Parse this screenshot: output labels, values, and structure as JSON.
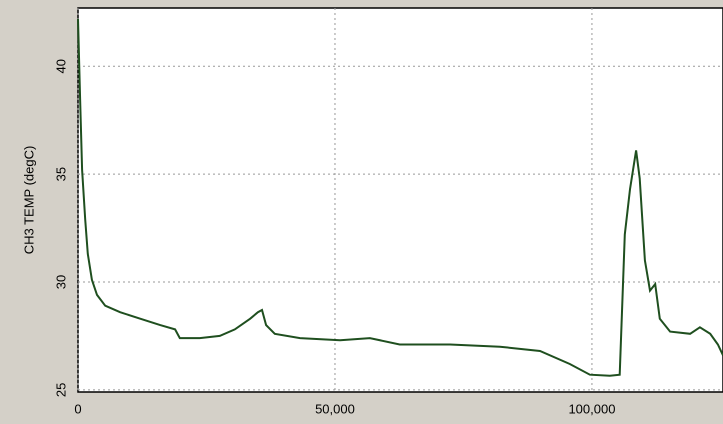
{
  "chart_data": {
    "type": "line",
    "y_label": "CH3 TEMP (degC)",
    "xlim": [
      0,
      125500
    ],
    "ylim": [
      24.9,
      42.7
    ],
    "xticks": [
      0,
      {
        "value": 50000,
        "label": "50,000"
      },
      {
        "value": 100000,
        "label": "100,000"
      }
    ],
    "yticks": [
      25,
      30,
      35,
      40
    ],
    "grid": true,
    "series": [
      {
        "color": "#1f4f1f",
        "x": [
          0,
          400,
          800,
          1400,
          1900,
          2700,
          3700,
          5300,
          8200,
          12100,
          16000,
          18900,
          19800,
          23700,
          27600,
          30500,
          33500,
          35000,
          35800,
          36600,
          38300,
          43200,
          51000,
          56800,
          62600,
          72400,
          82100,
          89900,
          95700,
          99600,
          103500,
          105400,
          106400,
          107400,
          108600,
          109300,
          110300,
          111300,
          112300,
          113200,
          115200,
          119100,
          121000,
          123000,
          124500,
          125500
        ],
        "values": [
          42.2,
          38.5,
          35.2,
          32.9,
          31.3,
          30.1,
          29.4,
          28.9,
          28.6,
          28.3,
          28.0,
          27.8,
          27.4,
          27.4,
          27.5,
          27.8,
          28.3,
          28.6,
          28.7,
          28.0,
          27.6,
          27.4,
          27.3,
          27.4,
          27.1,
          27.1,
          27.0,
          26.8,
          26.2,
          25.7,
          25.65,
          25.7,
          32.2,
          34.3,
          36.1,
          34.8,
          31.0,
          29.6,
          29.9,
          28.3,
          27.7,
          27.6,
          27.9,
          27.6,
          27.1,
          26.6
        ]
      }
    ]
  }
}
